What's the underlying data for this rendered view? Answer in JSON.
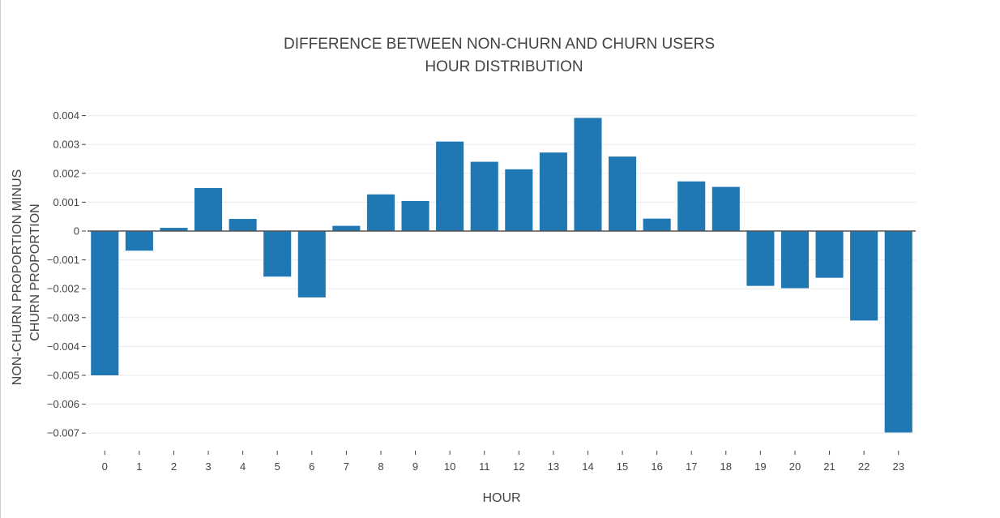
{
  "chart_data": {
    "type": "bar",
    "title_lines": [
      "DIFFERENCE BETWEEN NON-CHURN AND CHURN USERS",
      "HOUR DISTRIBUTION"
    ],
    "xlabel": "HOUR",
    "ylabel_lines": [
      "NON-CHURN PROPORTION MINUS",
      "CHURN PROPORTION"
    ],
    "categories": [
      "0",
      "1",
      "2",
      "3",
      "4",
      "5",
      "6",
      "7",
      "8",
      "9",
      "10",
      "11",
      "12",
      "13",
      "14",
      "15",
      "16",
      "17",
      "18",
      "19",
      "20",
      "21",
      "22",
      "23"
    ],
    "values": [
      -0.005,
      -0.00068,
      0.00011,
      0.00149,
      0.00042,
      -0.00158,
      -0.0023,
      0.00018,
      0.00127,
      0.00104,
      0.0031,
      0.0024,
      0.00214,
      0.00272,
      0.00392,
      0.00258,
      0.00043,
      0.00172,
      0.00153,
      -0.0019,
      -0.00198,
      -0.00162,
      -0.0031,
      -0.00698
    ],
    "ylim": [
      -0.0073,
      0.0043
    ],
    "yticks": [
      0.004,
      0.003,
      0.002,
      0.001,
      0,
      -0.001,
      -0.002,
      -0.003,
      -0.004,
      -0.005,
      -0.006,
      -0.007
    ],
    "ytick_labels": [
      "0.004",
      "0.003",
      "0.002",
      "0.001",
      "0",
      "−0.001",
      "−0.002",
      "−0.003",
      "−0.004",
      "−0.005",
      "−0.006",
      "−0.007"
    ],
    "bar_color": "#1f77b4",
    "grid": true
  }
}
